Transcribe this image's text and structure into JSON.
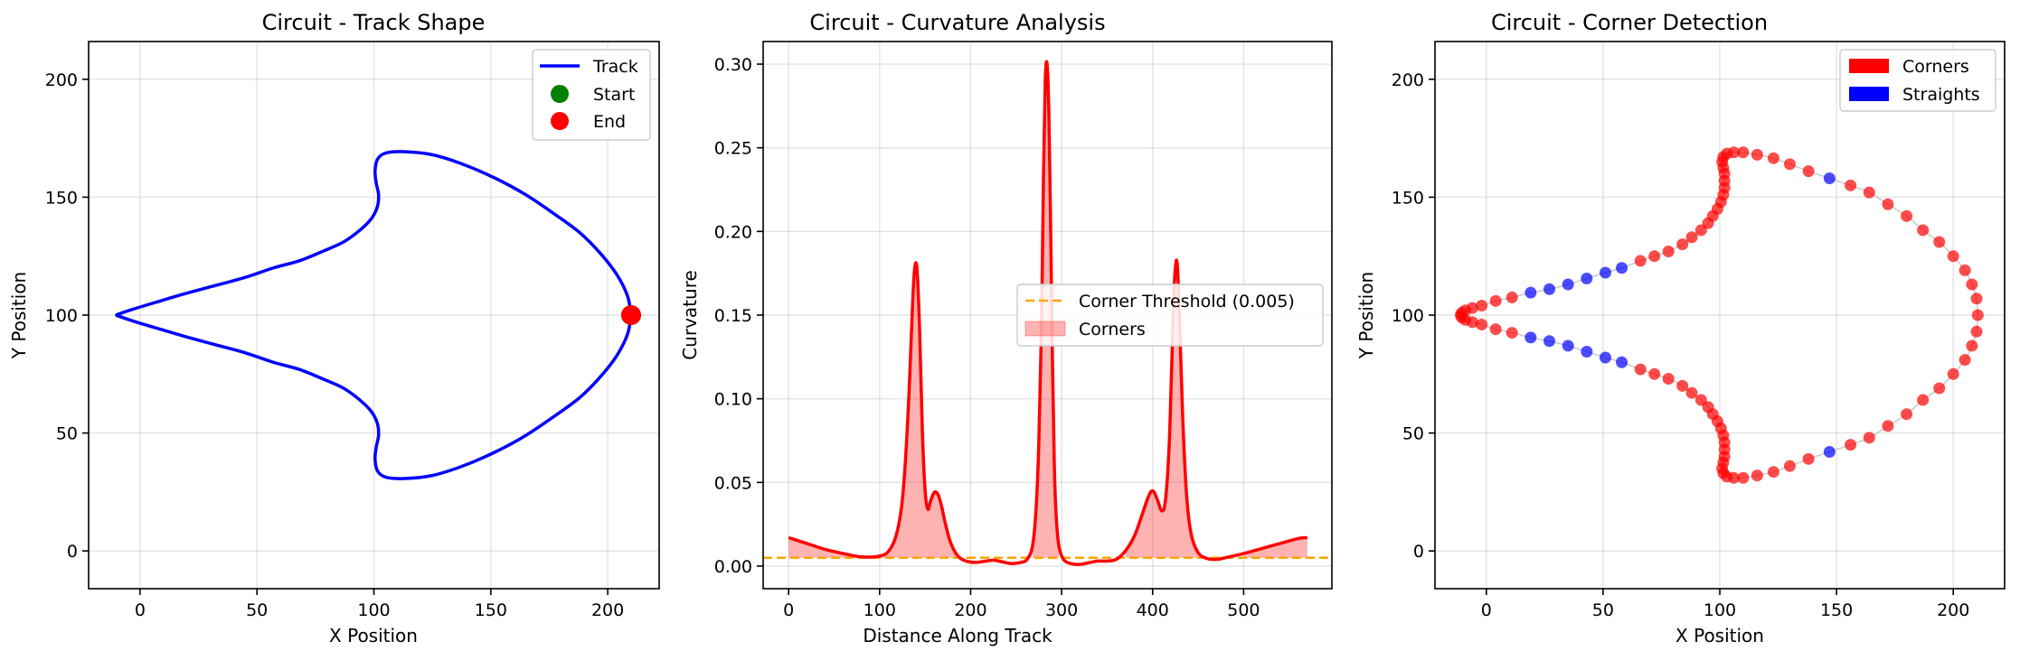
{
  "chart_data": [
    {
      "type": "line",
      "title": "Circuit - Track Shape",
      "xlabel": "X Position",
      "ylabel": "Y Position",
      "xlim": [
        -22,
        222
      ],
      "ylim": [
        -16,
        216
      ],
      "xticks": [
        0,
        50,
        100,
        150,
        200
      ],
      "yticks": [
        0,
        50,
        100,
        150,
        200
      ],
      "grid": true,
      "legend_position": "top-right",
      "series": [
        {
          "name": "Track",
          "color": "#0000ff"
        },
        {
          "name": "Start",
          "color": "#008000",
          "x": 210,
          "y": 100
        },
        {
          "name": "End",
          "color": "#ff0000",
          "x": 210,
          "y": 100
        }
      ],
      "track_shape": {
        "x": [
          210,
          208.5,
          204,
          197,
          188,
          177,
          165,
          152,
          138,
          125,
          113,
          105,
          101.5,
          100.5,
          101,
          102,
          101.5,
          99,
          94,
          87,
          78,
          68,
          57,
          45,
          32,
          19,
          7,
          -3,
          -9,
          -10,
          -9,
          -3,
          7,
          19,
          32,
          45,
          57,
          68,
          78,
          87,
          94,
          99,
          101.5,
          102,
          101,
          100.5,
          101.5,
          105,
          113,
          125,
          138,
          152,
          165,
          177,
          188,
          197,
          204,
          208.5,
          210
        ],
        "y": [
          100,
          108,
          117,
          126,
          135,
          143,
          151,
          158,
          164,
          168,
          169.3,
          168.7,
          166,
          161,
          156,
          151,
          146,
          141,
          136,
          131,
          127,
          123,
          120,
          116,
          112.5,
          109,
          105.5,
          102.5,
          100.5,
          100,
          99.5,
          97.5,
          94.5,
          91,
          87.5,
          84,
          80,
          77,
          73,
          69,
          64,
          59,
          54,
          49,
          44,
          39,
          34,
          31.3,
          30.7,
          32,
          36,
          42,
          49,
          57,
          65,
          74,
          83,
          92,
          100
        ]
      }
    },
    {
      "type": "line",
      "title": "Circuit - Curvature Analysis",
      "xlabel": "Distance Along Track",
      "ylabel": "Curvature",
      "xlim": [
        -28,
        597
      ],
      "ylim": [
        -0.0135,
        0.3135
      ],
      "xticks": [
        0,
        100,
        200,
        300,
        400,
        500
      ],
      "yticks": [
        0.0,
        0.05,
        0.1,
        0.15,
        0.2,
        0.25,
        0.3
      ],
      "ytick_labels": [
        "0.00",
        "0.05",
        "0.10",
        "0.15",
        "0.20",
        "0.25",
        "0.30"
      ],
      "grid": true,
      "legend_position": "center-right",
      "threshold": 0.005,
      "series": [
        {
          "name": "Curvature",
          "color": "#ff0000"
        },
        {
          "name": "Corner Threshold (0.005)",
          "color": "#ffa500"
        },
        {
          "name": "Corners",
          "color": "#ff0000"
        }
      ],
      "curvature": {
        "x": [
          0,
          20,
          40,
          60,
          80,
          100,
          110,
          118,
          124,
          128,
          132,
          135,
          138,
          141,
          144,
          147,
          150,
          153,
          156,
          160,
          164,
          168,
          172,
          178,
          186,
          195,
          205,
          215,
          225,
          235,
          245,
          255,
          262,
          268,
          272,
          275,
          278,
          280,
          282,
          284,
          286,
          288,
          290,
          292,
          294,
          297,
          302,
          310,
          320,
          330,
          340,
          350,
          360,
          370,
          380,
          388,
          395,
          400,
          405,
          410,
          414,
          418,
          421,
          424,
          427,
          430,
          433,
          437,
          442,
          450,
          460,
          470,
          480,
          500,
          520,
          540,
          560,
          570
        ],
        "y": [
          0.017,
          0.0135,
          0.01,
          0.0075,
          0.0055,
          0.006,
          0.009,
          0.018,
          0.035,
          0.06,
          0.1,
          0.14,
          0.175,
          0.178,
          0.14,
          0.08,
          0.045,
          0.034,
          0.039,
          0.044,
          0.043,
          0.036,
          0.026,
          0.014,
          0.006,
          0.003,
          0.0022,
          0.0028,
          0.0035,
          0.0025,
          0.0015,
          0.0022,
          0.004,
          0.012,
          0.035,
          0.075,
          0.15,
          0.23,
          0.29,
          0.3,
          0.27,
          0.2,
          0.12,
          0.06,
          0.03,
          0.012,
          0.004,
          0.0015,
          0.001,
          0.002,
          0.003,
          0.003,
          0.004,
          0.009,
          0.018,
          0.03,
          0.041,
          0.045,
          0.04,
          0.033,
          0.039,
          0.07,
          0.12,
          0.17,
          0.181,
          0.14,
          0.09,
          0.045,
          0.02,
          0.008,
          0.0045,
          0.004,
          0.005,
          0.0075,
          0.0105,
          0.0135,
          0.0165,
          0.017
        ]
      }
    },
    {
      "type": "scatter",
      "title": "Circuit - Corner Detection",
      "xlabel": "X Position",
      "ylabel": "Y Position",
      "xlim": [
        -22,
        222
      ],
      "ylim": [
        -16,
        216
      ],
      "xticks": [
        0,
        50,
        100,
        150,
        200
      ],
      "yticks": [
        0,
        50,
        100,
        150,
        200
      ],
      "grid": true,
      "legend_position": "top-right",
      "series": [
        {
          "name": "Corners",
          "color": "#ff0000"
        },
        {
          "name": "Straights",
          "color": "#0000ff"
        }
      ],
      "points": [
        {
          "x": 210.5,
          "y": 100,
          "c": "corner"
        },
        {
          "x": 210,
          "y": 107,
          "c": "corner"
        },
        {
          "x": 208,
          "y": 113,
          "c": "corner"
        },
        {
          "x": 205,
          "y": 119,
          "c": "corner"
        },
        {
          "x": 200,
          "y": 125,
          "c": "corner"
        },
        {
          "x": 194,
          "y": 131,
          "c": "corner"
        },
        {
          "x": 187,
          "y": 136,
          "c": "corner"
        },
        {
          "x": 180,
          "y": 142,
          "c": "corner"
        },
        {
          "x": 172,
          "y": 147,
          "c": "corner"
        },
        {
          "x": 164,
          "y": 152,
          "c": "corner"
        },
        {
          "x": 156,
          "y": 155,
          "c": "corner"
        },
        {
          "x": 147,
          "y": 158,
          "c": "straight"
        },
        {
          "x": 138,
          "y": 161,
          "c": "corner"
        },
        {
          "x": 130,
          "y": 164,
          "c": "corner"
        },
        {
          "x": 123,
          "y": 166.5,
          "c": "corner"
        },
        {
          "x": 116,
          "y": 168,
          "c": "corner"
        },
        {
          "x": 110,
          "y": 169,
          "c": "corner"
        },
        {
          "x": 106,
          "y": 169,
          "c": "corner"
        },
        {
          "x": 103,
          "y": 168.5,
          "c": "corner"
        },
        {
          "x": 101.5,
          "y": 167,
          "c": "corner"
        },
        {
          "x": 101,
          "y": 165,
          "c": "corner"
        },
        {
          "x": 101.5,
          "y": 162.5,
          "c": "corner"
        },
        {
          "x": 102,
          "y": 160,
          "c": "corner"
        },
        {
          "x": 102,
          "y": 157,
          "c": "corner"
        },
        {
          "x": 102,
          "y": 154,
          "c": "corner"
        },
        {
          "x": 101.5,
          "y": 151,
          "c": "corner"
        },
        {
          "x": 100.5,
          "y": 148,
          "c": "corner"
        },
        {
          "x": 99,
          "y": 145,
          "c": "corner"
        },
        {
          "x": 97,
          "y": 142,
          "c": "corner"
        },
        {
          "x": 95,
          "y": 139,
          "c": "corner"
        },
        {
          "x": 92,
          "y": 136,
          "c": "corner"
        },
        {
          "x": 88,
          "y": 133,
          "c": "corner"
        },
        {
          "x": 84,
          "y": 130,
          "c": "corner"
        },
        {
          "x": 78,
          "y": 127,
          "c": "corner"
        },
        {
          "x": 72,
          "y": 125,
          "c": "corner"
        },
        {
          "x": 66,
          "y": 123,
          "c": "corner"
        },
        {
          "x": 58,
          "y": 120,
          "c": "straight"
        },
        {
          "x": 51,
          "y": 118,
          "c": "straight"
        },
        {
          "x": 43,
          "y": 115.5,
          "c": "straight"
        },
        {
          "x": 35,
          "y": 113,
          "c": "straight"
        },
        {
          "x": 27,
          "y": 111,
          "c": "straight"
        },
        {
          "x": 19,
          "y": 109.5,
          "c": "straight"
        },
        {
          "x": 11,
          "y": 107.5,
          "c": "corner"
        },
        {
          "x": 4,
          "y": 106,
          "c": "corner"
        },
        {
          "x": -2,
          "y": 104,
          "c": "corner"
        },
        {
          "x": -6,
          "y": 103,
          "c": "corner"
        },
        {
          "x": -9,
          "y": 102,
          "c": "corner"
        },
        {
          "x": -10.5,
          "y": 101,
          "c": "corner"
        },
        {
          "x": -11,
          "y": 100,
          "c": "corner"
        },
        {
          "x": -10.5,
          "y": 99,
          "c": "corner"
        },
        {
          "x": -9,
          "y": 98,
          "c": "corner"
        },
        {
          "x": -6,
          "y": 97,
          "c": "corner"
        },
        {
          "x": -2,
          "y": 96,
          "c": "corner"
        },
        {
          "x": 4,
          "y": 94,
          "c": "corner"
        },
        {
          "x": 11,
          "y": 92.5,
          "c": "corner"
        },
        {
          "x": 19,
          "y": 90.5,
          "c": "straight"
        },
        {
          "x": 27,
          "y": 89,
          "c": "straight"
        },
        {
          "x": 35,
          "y": 87,
          "c": "straight"
        },
        {
          "x": 43,
          "y": 84.5,
          "c": "straight"
        },
        {
          "x": 51,
          "y": 82,
          "c": "straight"
        },
        {
          "x": 58,
          "y": 80,
          "c": "straight"
        },
        {
          "x": 66,
          "y": 77,
          "c": "corner"
        },
        {
          "x": 72,
          "y": 75,
          "c": "corner"
        },
        {
          "x": 78,
          "y": 73,
          "c": "corner"
        },
        {
          "x": 84,
          "y": 70,
          "c": "corner"
        },
        {
          "x": 88,
          "y": 67,
          "c": "corner"
        },
        {
          "x": 92,
          "y": 64,
          "c": "corner"
        },
        {
          "x": 95,
          "y": 61,
          "c": "corner"
        },
        {
          "x": 97,
          "y": 58,
          "c": "corner"
        },
        {
          "x": 99,
          "y": 55,
          "c": "corner"
        },
        {
          "x": 100.5,
          "y": 52,
          "c": "corner"
        },
        {
          "x": 101.5,
          "y": 49,
          "c": "corner"
        },
        {
          "x": 102,
          "y": 46,
          "c": "corner"
        },
        {
          "x": 102,
          "y": 43,
          "c": "corner"
        },
        {
          "x": 102,
          "y": 40,
          "c": "corner"
        },
        {
          "x": 101.5,
          "y": 37.5,
          "c": "corner"
        },
        {
          "x": 101,
          "y": 35,
          "c": "corner"
        },
        {
          "x": 101.5,
          "y": 33,
          "c": "corner"
        },
        {
          "x": 103,
          "y": 31.5,
          "c": "corner"
        },
        {
          "x": 106,
          "y": 31,
          "c": "corner"
        },
        {
          "x": 110,
          "y": 31,
          "c": "corner"
        },
        {
          "x": 116,
          "y": 32,
          "c": "corner"
        },
        {
          "x": 123,
          "y": 33.5,
          "c": "corner"
        },
        {
          "x": 130,
          "y": 36,
          "c": "corner"
        },
        {
          "x": 138,
          "y": 39,
          "c": "corner"
        },
        {
          "x": 147,
          "y": 42,
          "c": "straight"
        },
        {
          "x": 156,
          "y": 45,
          "c": "corner"
        },
        {
          "x": 164,
          "y": 48,
          "c": "corner"
        },
        {
          "x": 172,
          "y": 53,
          "c": "corner"
        },
        {
          "x": 180,
          "y": 58,
          "c": "corner"
        },
        {
          "x": 187,
          "y": 64,
          "c": "corner"
        },
        {
          "x": 194,
          "y": 69,
          "c": "corner"
        },
        {
          "x": 200,
          "y": 75,
          "c": "corner"
        },
        {
          "x": 205,
          "y": 81,
          "c": "corner"
        },
        {
          "x": 208,
          "y": 87,
          "c": "corner"
        },
        {
          "x": 210,
          "y": 93,
          "c": "corner"
        }
      ]
    }
  ]
}
